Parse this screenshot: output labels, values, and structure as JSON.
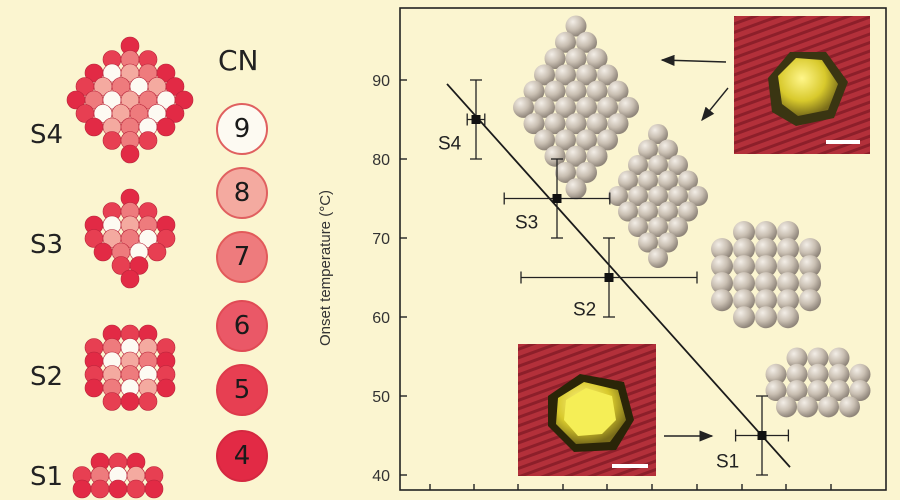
{
  "legend": {
    "title": "CN",
    "levels": [
      {
        "value": "9",
        "color": "#fdfaf2"
      },
      {
        "value": "8",
        "color": "#f4aaa0"
      },
      {
        "value": "7",
        "color": "#ee7b7d"
      },
      {
        "value": "6",
        "color": "#ea5867"
      },
      {
        "value": "5",
        "color": "#e73f52"
      },
      {
        "value": "4",
        "color": "#e22a45"
      }
    ]
  },
  "structures": {
    "left_labels": [
      "S4",
      "S3",
      "S2",
      "S1"
    ]
  },
  "colors": {
    "background": "#fbf5d0",
    "cluster_grey": "#c9bfb2",
    "afm_background": "#b3303a",
    "afm_particle": "#e7dc3c"
  },
  "chart_data": {
    "type": "scatter",
    "ylabel": "Onset temperature (°C)",
    "xlabel": "",
    "ylim": [
      38.5,
      103
    ],
    "yticks": [
      40,
      50,
      60,
      70,
      80,
      90
    ],
    "grid": false,
    "points": [
      {
        "label": "S4",
        "y": 85,
        "x_rank": 1,
        "yerr": 5,
        "xerr": 0.1
      },
      {
        "label": "S3",
        "y": 75,
        "x_rank": 2,
        "yerr": 5,
        "xerr": 0.6
      },
      {
        "label": "S2",
        "y": 65,
        "x_rank": 3,
        "yerr": 5,
        "xerr": 1.0
      },
      {
        "label": "S1",
        "y": 45,
        "x_rank": 4,
        "yerr": 5,
        "xerr": 0.3
      }
    ],
    "fit_line": {
      "y_start": 89.5,
      "y_end": 41
    }
  }
}
